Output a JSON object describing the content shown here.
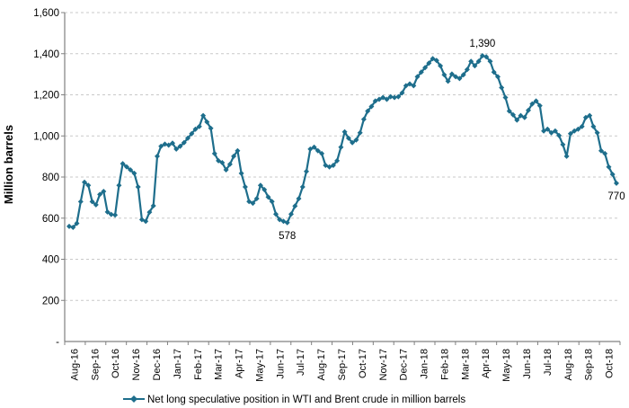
{
  "chart_data": {
    "type": "line",
    "title": "",
    "ylabel": "Million barrels",
    "ylim": [
      0,
      1600
    ],
    "ytick_step": 200,
    "ytick_labels": [
      "-",
      "200",
      "400",
      "600",
      "800",
      "1,000",
      "1,200",
      "1,400",
      "1,600"
    ],
    "grid": "horizontal-dashed",
    "legend_position": "bottom-center",
    "x_labels": [
      "Aug-16",
      "Sep-16",
      "Oct-16",
      "Nov-16",
      "Dec-16",
      "Jan-17",
      "Feb-17",
      "Mar-17",
      "Apr-17",
      "May-17",
      "Jun-17",
      "Jul-17",
      "Aug-17",
      "Sep-17",
      "Oct-17",
      "Nov-17",
      "Dec-17",
      "Jan-18",
      "Feb-18",
      "Mar-18",
      "Apr-18",
      "May-18",
      "Jun-18",
      "Jul-18",
      "Aug-18",
      "Sep-18",
      "Oct-18"
    ],
    "series": [
      {
        "name": "Net long speculative position in WTI and Brent crude in million barrels",
        "color": "#1E6E8C",
        "marker": "diamond",
        "values": [
          560,
          555,
          575,
          680,
          775,
          760,
          680,
          665,
          715,
          730,
          630,
          618,
          615,
          760,
          865,
          850,
          835,
          818,
          752,
          593,
          585,
          629,
          660,
          901,
          950,
          960,
          955,
          965,
          936,
          950,
          967,
          989,
          1011,
          1033,
          1046,
          1099,
          1068,
          1037,
          914,
          879,
          870,
          835,
          862,
          901,
          928,
          818,
          752,
          681,
          673,
          695,
          760,
          739,
          703,
          681,
          620,
          593,
          585,
          578,
          620,
          659,
          695,
          752,
          827,
          936,
          945,
          928,
          914,
          857,
          849,
          857,
          879,
          945,
          1020,
          989,
          967,
          980,
          1015,
          1081,
          1121,
          1143,
          1170,
          1178,
          1187,
          1178,
          1191,
          1187,
          1191,
          1209,
          1244,
          1253,
          1244,
          1288,
          1310,
          1332,
          1354,
          1376,
          1367,
          1341,
          1297,
          1266,
          1301,
          1288,
          1279,
          1297,
          1323,
          1363,
          1341,
          1363,
          1390,
          1385,
          1363,
          1310,
          1288,
          1235,
          1187,
          1121,
          1103,
          1077,
          1099,
          1090,
          1125,
          1156,
          1170,
          1147,
          1024,
          1033,
          1015,
          1024,
          1002,
          958,
          901,
          1011,
          1024,
          1033,
          1046,
          1090,
          1099,
          1046,
          1015,
          928,
          914,
          849,
          813,
          770
        ]
      }
    ],
    "annotations": [
      {
        "point_index": 108,
        "label": "1,390",
        "placement": "above"
      },
      {
        "point_index": 57,
        "label": "578",
        "placement": "below"
      },
      {
        "point_index": 143,
        "label": "770",
        "placement": "below"
      }
    ],
    "colors": {
      "accent": "#1E6E8C",
      "grid": "#C9C9C9",
      "axis": "#808080",
      "text": "#000000",
      "background": "#FFFFFF"
    }
  }
}
